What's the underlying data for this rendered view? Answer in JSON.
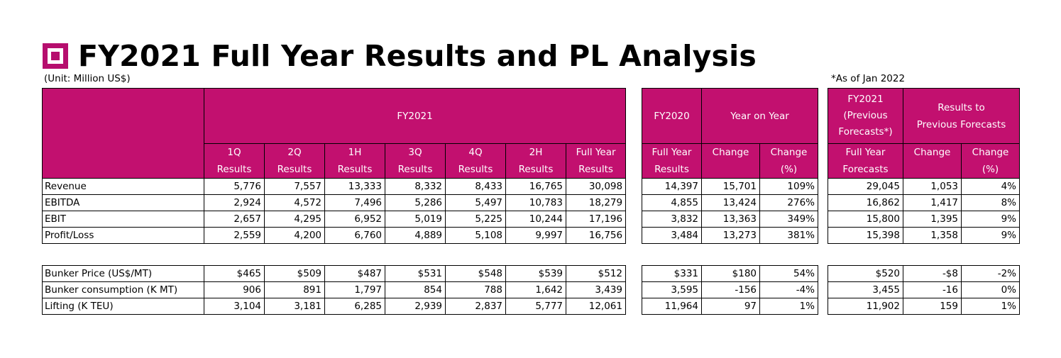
{
  "title": "FY2021 Full Year Results and PL Analysis",
  "unit_note": "(Unit: Million US$)",
  "as_of_note": "*As of Jan 2022",
  "headers": {
    "fy2021": "FY2021",
    "cols": [
      [
        "1Q",
        "Results"
      ],
      [
        "2Q",
        "Results"
      ],
      [
        "1H",
        "Results"
      ],
      [
        "3Q",
        "Results"
      ],
      [
        "4Q",
        "Results"
      ],
      [
        "2H",
        "Results"
      ],
      [
        "Full Year",
        "Results"
      ]
    ],
    "fy2020": "FY2020",
    "fy2020_col": [
      "Full Year",
      "Results"
    ],
    "yoy": "Year on Year",
    "yoy_cols": [
      [
        "Change",
        ""
      ],
      [
        "Change",
        "(%)"
      ]
    ],
    "prev": [
      "FY2021",
      "(Previous",
      "Forecasts*)"
    ],
    "prev_col": [
      "Full Year",
      "Forecasts"
    ],
    "rtp": [
      "Results to",
      "Previous Forecasts"
    ],
    "rtp_cols": [
      [
        "Change",
        ""
      ],
      [
        "Change",
        "(%)"
      ]
    ]
  },
  "rows": [
    {
      "label": "Revenue",
      "fy2021": [
        "5,776",
        "7,557",
        "13,333",
        "8,332",
        "8,433",
        "16,765",
        "30,098"
      ],
      "fy2020": "14,397",
      "yoy": [
        "15,701",
        "109%"
      ],
      "prev": "29,045",
      "rtp": [
        "1,053",
        "4%"
      ]
    },
    {
      "label": "EBITDA",
      "fy2021": [
        "2,924",
        "4,572",
        "7,496",
        "5,286",
        "5,497",
        "10,783",
        "18,279"
      ],
      "fy2020": "4,855",
      "yoy": [
        "13,424",
        "276%"
      ],
      "prev": "16,862",
      "rtp": [
        "1,417",
        "8%"
      ]
    },
    {
      "label": "EBIT",
      "fy2021": [
        "2,657",
        "4,295",
        "6,952",
        "5,019",
        "5,225",
        "10,244",
        "17,196"
      ],
      "fy2020": "3,832",
      "yoy": [
        "13,363",
        "349%"
      ],
      "prev": "15,800",
      "rtp": [
        "1,395",
        "9%"
      ]
    },
    {
      "label": "Profit/Loss",
      "fy2021": [
        "2,559",
        "4,200",
        "6,760",
        "4,889",
        "5,108",
        "9,997",
        "16,756"
      ],
      "fy2020": "3,484",
      "yoy": [
        "13,273",
        "381%"
      ],
      "prev": "15,398",
      "rtp": [
        "1,358",
        "9%"
      ]
    }
  ],
  "rows2": [
    {
      "label": "Bunker Price (US$/MT)",
      "fy2021": [
        "$465",
        "$509",
        "$487",
        "$531",
        "$548",
        "$539",
        "$512"
      ],
      "fy2020": "$331",
      "yoy": [
        "$180",
        "54%"
      ],
      "prev": "$520",
      "rtp": [
        "-$8",
        "-2%"
      ]
    },
    {
      "label": "Bunker consumption (K MT)",
      "fy2021": [
        "906",
        "891",
        "1,797",
        "854",
        "788",
        "1,642",
        "3,439"
      ],
      "fy2020": "3,595",
      "yoy": [
        "-156",
        "-4%"
      ],
      "prev": "3,455",
      "rtp": [
        "-16",
        "0%"
      ]
    },
    {
      "label": "Lifting (K TEU)",
      "fy2021": [
        "3,104",
        "3,181",
        "6,285",
        "2,939",
        "2,837",
        "5,777",
        "12,061"
      ],
      "fy2020": "11,964",
      "yoy": [
        "97",
        "1%"
      ],
      "prev": "11,902",
      "rtp": [
        "159",
        "1%"
      ]
    }
  ]
}
